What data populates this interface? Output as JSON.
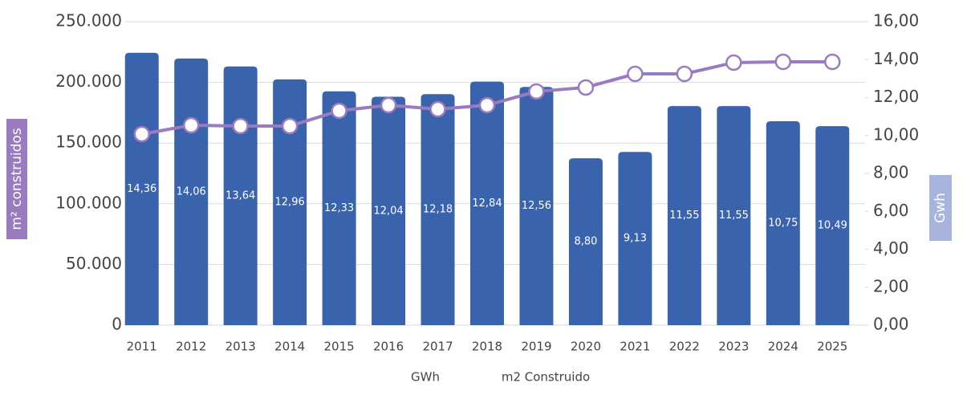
{
  "chart_data": {
    "type": "bar-line",
    "categories": [
      "2011",
      "2012",
      "2013",
      "2014",
      "2015",
      "2016",
      "2017",
      "2018",
      "2019",
      "2020",
      "2021",
      "2022",
      "2023",
      "2024",
      "2025"
    ],
    "y_label": "m² construidos",
    "y2_label": "Gwh",
    "series": [
      {
        "name": "GWh",
        "type": "bar",
        "axis": "y2",
        "color": "#3a63ad",
        "values": [
          14.36,
          14.06,
          13.64,
          12.96,
          12.33,
          12.04,
          12.18,
          12.84,
          12.56,
          8.8,
          9.13,
          11.55,
          11.55,
          10.75,
          10.49
        ],
        "value_labels": [
          "14,36",
          "14,06",
          "13,64",
          "12,96",
          "12,33",
          "12,04",
          "12,18",
          "12,84",
          "12,56",
          "8,80",
          "9,13",
          "11,55",
          "11,55",
          "10,75",
          "10,49"
        ]
      },
      {
        "name": "m2 Construido",
        "type": "line",
        "axis": "y",
        "color": "#9b7bbf",
        "values": [
          157400,
          164700,
          164000,
          164000,
          176600,
          181200,
          177900,
          181200,
          192500,
          195800,
          207000,
          207000,
          216300,
          216900,
          216900
        ]
      }
    ],
    "ylim": [
      0,
      250000
    ],
    "yticks": [
      0,
      {
        "value": 50000,
        "label": "50.000"
      },
      {
        "value": 100000,
        "label": "100.000"
      },
      {
        "value": 150000,
        "label": "150.000"
      },
      {
        "value": 200000,
        "label": "200.000"
      },
      {
        "value": 250000,
        "label": "250.000"
      }
    ],
    "y2lim": [
      0,
      16
    ],
    "y2ticks": [
      {
        "value": 0,
        "label": "0,00"
      },
      {
        "value": 2,
        "label": "2,00"
      },
      {
        "value": 4,
        "label": "4,00"
      },
      {
        "value": 6,
        "label": "6,00"
      },
      {
        "value": 8,
        "label": "8,00"
      },
      {
        "value": 10,
        "label": "10,00"
      },
      {
        "value": 12,
        "label": "12,00"
      },
      {
        "value": 14,
        "label": "14,00"
      },
      {
        "value": 16,
        "label": "16,00"
      }
    ],
    "grid": true
  }
}
